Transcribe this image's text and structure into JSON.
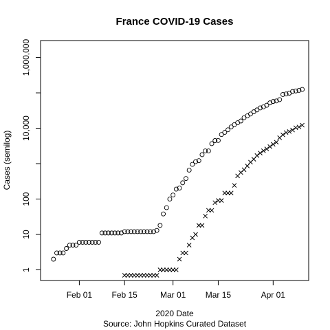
{
  "chart_data": {
    "type": "scatter",
    "title": "France COVID-19 Cases",
    "xlabel": "2020 Date",
    "caption": "Source: John Hopkins Curated Dataset",
    "ylabel": "Cases (semilog)",
    "y_scale": "log",
    "ylim": [
      0.5,
      3000000
    ],
    "xlim": [
      "2020-01-20",
      "2020-04-12"
    ],
    "x_ticks": [
      {
        "date": "2020-02-01",
        "label": "Feb 01"
      },
      {
        "date": "2020-02-15",
        "label": "Feb 15"
      },
      {
        "date": "2020-03-01",
        "label": "Mar 01"
      },
      {
        "date": "2020-03-15",
        "label": "Mar 15"
      },
      {
        "date": "2020-04-01",
        "label": "Apr 01"
      }
    ],
    "y_ticks": [
      {
        "value": 1,
        "label": "1"
      },
      {
        "value": 10,
        "label": "10"
      },
      {
        "value": 100,
        "label": "100"
      },
      {
        "value": 10000,
        "label": "10,000"
      },
      {
        "value": 1000000,
        "label": "1,000,000"
      }
    ],
    "y_minor_ticks": [
      1000,
      100000
    ],
    "grid": false,
    "legend": "none",
    "series": [
      {
        "marker": "circle",
        "points": [
          [
            "2020-01-24",
            2
          ],
          [
            "2020-01-25",
            3
          ],
          [
            "2020-01-26",
            3
          ],
          [
            "2020-01-27",
            3
          ],
          [
            "2020-01-28",
            4
          ],
          [
            "2020-01-29",
            5
          ],
          [
            "2020-01-30",
            5
          ],
          [
            "2020-01-31",
            5
          ],
          [
            "2020-02-01",
            6
          ],
          [
            "2020-02-02",
            6
          ],
          [
            "2020-02-03",
            6
          ],
          [
            "2020-02-04",
            6
          ],
          [
            "2020-02-05",
            6
          ],
          [
            "2020-02-06",
            6
          ],
          [
            "2020-02-07",
            6
          ],
          [
            "2020-02-08",
            11
          ],
          [
            "2020-02-09",
            11
          ],
          [
            "2020-02-10",
            11
          ],
          [
            "2020-02-11",
            11
          ],
          [
            "2020-02-12",
            11
          ],
          [
            "2020-02-13",
            11
          ],
          [
            "2020-02-14",
            11
          ],
          [
            "2020-02-15",
            12
          ],
          [
            "2020-02-16",
            12
          ],
          [
            "2020-02-17",
            12
          ],
          [
            "2020-02-18",
            12
          ],
          [
            "2020-02-19",
            12
          ],
          [
            "2020-02-20",
            12
          ],
          [
            "2020-02-21",
            12
          ],
          [
            "2020-02-22",
            12
          ],
          [
            "2020-02-23",
            12
          ],
          [
            "2020-02-24",
            12
          ],
          [
            "2020-02-25",
            13
          ],
          [
            "2020-02-26",
            18
          ],
          [
            "2020-02-27",
            38
          ],
          [
            "2020-02-28",
            57
          ],
          [
            "2020-02-29",
            100
          ],
          [
            "2020-03-01",
            130
          ],
          [
            "2020-03-02",
            191
          ],
          [
            "2020-03-03",
            204
          ],
          [
            "2020-03-04",
            288
          ],
          [
            "2020-03-05",
            380
          ],
          [
            "2020-03-06",
            656
          ],
          [
            "2020-03-07",
            957
          ],
          [
            "2020-03-08",
            1134
          ],
          [
            "2020-03-09",
            1217
          ],
          [
            "2020-03-10",
            1792
          ],
          [
            "2020-03-11",
            2289
          ],
          [
            "2020-03-12",
            2289
          ],
          [
            "2020-03-13",
            3672
          ],
          [
            "2020-03-14",
            4480
          ],
          [
            "2020-03-15",
            4513
          ],
          [
            "2020-03-16",
            6650
          ],
          [
            "2020-03-17",
            7652
          ],
          [
            "2020-03-18",
            9043
          ],
          [
            "2020-03-19",
            10871
          ],
          [
            "2020-03-20",
            12612
          ],
          [
            "2020-03-21",
            14282
          ],
          [
            "2020-03-22",
            16018
          ],
          [
            "2020-03-23",
            19856
          ],
          [
            "2020-03-24",
            22304
          ],
          [
            "2020-03-25",
            25233
          ],
          [
            "2020-03-26",
            29155
          ],
          [
            "2020-03-27",
            32964
          ],
          [
            "2020-03-28",
            37575
          ],
          [
            "2020-03-29",
            40174
          ],
          [
            "2020-03-30",
            44550
          ],
          [
            "2020-03-31",
            52128
          ],
          [
            "2020-04-01",
            56989
          ],
          [
            "2020-04-02",
            59105
          ],
          [
            "2020-04-03",
            64338
          ],
          [
            "2020-04-04",
            89953
          ],
          [
            "2020-04-05",
            92839
          ],
          [
            "2020-04-06",
            98010
          ],
          [
            "2020-04-07",
            109069
          ],
          [
            "2020-04-08",
            112950
          ],
          [
            "2020-04-09",
            117749
          ],
          [
            "2020-04-10",
            124869
          ]
        ]
      },
      {
        "marker": "cross",
        "points": [
          [
            "2020-02-15",
            0.7
          ],
          [
            "2020-02-16",
            0.7
          ],
          [
            "2020-02-17",
            0.7
          ],
          [
            "2020-02-18",
            0.7
          ],
          [
            "2020-02-19",
            0.7
          ],
          [
            "2020-02-20",
            0.7
          ],
          [
            "2020-02-21",
            0.7
          ],
          [
            "2020-02-22",
            0.7
          ],
          [
            "2020-02-23",
            0.7
          ],
          [
            "2020-02-24",
            0.7
          ],
          [
            "2020-02-25",
            0.7
          ],
          [
            "2020-02-26",
            1
          ],
          [
            "2020-02-27",
            1
          ],
          [
            "2020-02-28",
            1
          ],
          [
            "2020-02-29",
            1
          ],
          [
            "2020-03-01",
            1
          ],
          [
            "2020-03-02",
            1
          ],
          [
            "2020-03-03",
            2
          ],
          [
            "2020-03-04",
            3
          ],
          [
            "2020-03-05",
            3
          ],
          [
            "2020-03-06",
            5
          ],
          [
            "2020-03-07",
            8
          ],
          [
            "2020-03-08",
            10
          ],
          [
            "2020-03-09",
            18
          ],
          [
            "2020-03-10",
            18
          ],
          [
            "2020-03-11",
            33
          ],
          [
            "2020-03-12",
            48
          ],
          [
            "2020-03-13",
            48
          ],
          [
            "2020-03-14",
            79
          ],
          [
            "2020-03-15",
            91
          ],
          [
            "2020-03-16",
            91
          ],
          [
            "2020-03-17",
            148
          ],
          [
            "2020-03-18",
            148
          ],
          [
            "2020-03-19",
            148
          ],
          [
            "2020-03-20",
            243
          ],
          [
            "2020-03-21",
            450
          ],
          [
            "2020-03-22",
            562
          ],
          [
            "2020-03-23",
            674
          ],
          [
            "2020-03-24",
            860
          ],
          [
            "2020-03-25",
            1100
          ],
          [
            "2020-03-26",
            1331
          ],
          [
            "2020-03-27",
            1696
          ],
          [
            "2020-03-28",
            1995
          ],
          [
            "2020-03-29",
            2314
          ],
          [
            "2020-03-30",
            2606
          ],
          [
            "2020-03-31",
            3024
          ],
          [
            "2020-04-01",
            3523
          ],
          [
            "2020-04-02",
            4032
          ],
          [
            "2020-04-03",
            5387
          ],
          [
            "2020-04-04",
            6507
          ],
          [
            "2020-04-05",
            7560
          ],
          [
            "2020-04-06",
            8078
          ],
          [
            "2020-04-07",
            8911
          ],
          [
            "2020-04-08",
            10328
          ],
          [
            "2020-04-09",
            10869
          ],
          [
            "2020-04-10",
            12210
          ]
        ]
      }
    ]
  }
}
